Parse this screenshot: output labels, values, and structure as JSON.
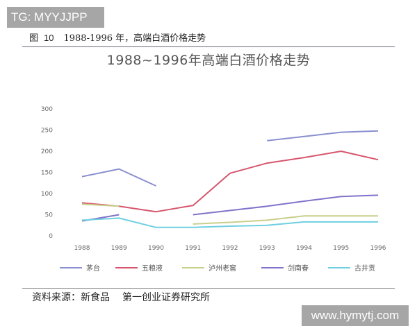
{
  "watermarks": {
    "top": "TG: MYYJJPP",
    "bottom": "www.hymytj.com"
  },
  "caption": {
    "prefix": "图",
    "number": "10",
    "text": "1988-1996 年，高端白酒价格走势"
  },
  "source": {
    "label": "资料来源：新食品",
    "org": "第一创业证券研究所"
  },
  "chart_data": {
    "type": "line",
    "title": "1988~1996年高端白酒价格走势",
    "xlabel": "",
    "ylabel": "",
    "categories": [
      "1988",
      "1989",
      "1990",
      "1991",
      "1992",
      "1993",
      "1994",
      "1995",
      "1996"
    ],
    "ylim": [
      0,
      300
    ],
    "yticks": [
      0,
      50,
      100,
      150,
      200,
      250,
      300
    ],
    "grid": false,
    "legend_position": "bottom",
    "series": [
      {
        "name": "茅台",
        "color": "#8a8fcf",
        "values": [
          140,
          158,
          118,
          null,
          null,
          225,
          235,
          245,
          248
        ]
      },
      {
        "name": "五粮液",
        "color": "#d6566e",
        "values": [
          78,
          70,
          57,
          72,
          148,
          172,
          185,
          200,
          180
        ]
      },
      {
        "name": "泸州老窖",
        "color": "#c8cf8a",
        "values": [
          75,
          70,
          null,
          28,
          32,
          37,
          47,
          47,
          47
        ]
      },
      {
        "name": "剑南春",
        "color": "#7f74c9",
        "values": [
          35,
          50,
          null,
          50,
          60,
          70,
          82,
          93,
          96
        ]
      },
      {
        "name": "古井贡",
        "color": "#6fcfe0",
        "values": [
          37,
          42,
          20,
          20,
          23,
          25,
          33,
          33,
          33
        ]
      }
    ]
  }
}
